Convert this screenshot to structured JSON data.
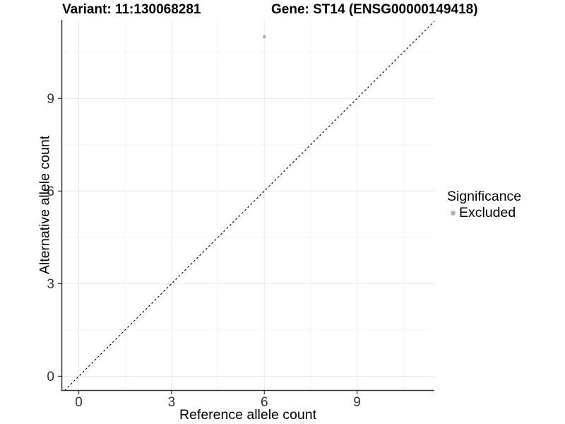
{
  "header": {
    "variant_title": "Variant: 11:130068281",
    "gene_title": "Gene: ST14 (ENSG00000149418)"
  },
  "chart_data": {
    "type": "scatter",
    "title_left": "Variant: 11:130068281",
    "title_right": "Gene: ST14 (ENSG00000149418)",
    "xlabel": "Reference allele count",
    "ylabel": "Alternative allele count",
    "xlim": [
      -0.55,
      11.5
    ],
    "ylim": [
      -0.46,
      11.55
    ],
    "xticks": [
      0,
      3,
      6,
      9
    ],
    "yticks": [
      0,
      3,
      6,
      9
    ],
    "x_minor": [
      1.5,
      4.5,
      7.5,
      10.5
    ],
    "y_minor": [
      1.5,
      4.5,
      7.5,
      10.5
    ],
    "grid": "major+minor",
    "legend_position": "right",
    "series": [
      {
        "name": "Excluded",
        "color": "#b3b3b3",
        "points": [
          {
            "x": 6,
            "y": 11
          }
        ]
      }
    ],
    "reference_line": {
      "style": "dashed",
      "slope": 1,
      "intercept": 0,
      "color": "#000000"
    }
  },
  "legend": {
    "title": "Significance",
    "entries": [
      {
        "label": "Excluded",
        "color": "#b3b3b3"
      }
    ]
  },
  "colors": {
    "background": "#ffffff",
    "grid_major": "#e9e9e9",
    "grid_minor": "#f4f4f4",
    "axis_line": "#333333",
    "tick_text": "#333333",
    "title_text": "#000000"
  }
}
